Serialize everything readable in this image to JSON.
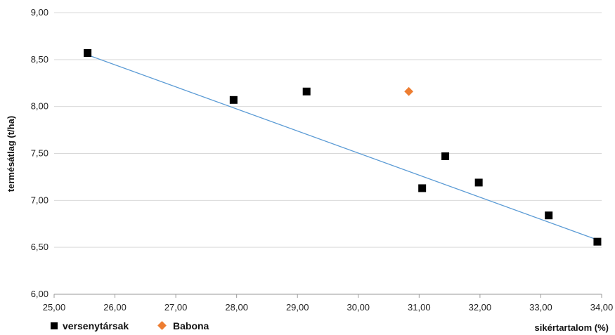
{
  "chart_data": {
    "type": "scatter",
    "title": "",
    "xlabel": "sikértartalom (%)",
    "ylabel": "termésátlag (t/ha)",
    "xlim": [
      25,
      34
    ],
    "ylim": [
      6,
      9
    ],
    "x_ticks": [
      "25,00",
      "26,00",
      "27,00",
      "28,00",
      "29,00",
      "30,00",
      "31,00",
      "32,00",
      "33,00",
      "34,00"
    ],
    "y_ticks": [
      "6,00",
      "6,50",
      "7,00",
      "7,50",
      "8,00",
      "8,50",
      "9,00"
    ],
    "grid": "horizontal",
    "legend_position": "bottom-left",
    "series": [
      {
        "name": "versenytársak",
        "marker": "square",
        "color": "#000000",
        "points": [
          {
            "x": 25.55,
            "y": 8.57
          },
          {
            "x": 27.95,
            "y": 8.07
          },
          {
            "x": 29.15,
            "y": 8.16
          },
          {
            "x": 31.05,
            "y": 7.13
          },
          {
            "x": 31.43,
            "y": 7.47
          },
          {
            "x": 31.98,
            "y": 7.19
          },
          {
            "x": 33.13,
            "y": 6.84
          },
          {
            "x": 33.93,
            "y": 6.56
          }
        ]
      },
      {
        "name": "Babona",
        "marker": "diamond",
        "color": "#ED7D31",
        "points": [
          {
            "x": 30.83,
            "y": 8.16
          }
        ]
      }
    ],
    "trendline": {
      "series": "versenytársak",
      "color": "#5B9BD5",
      "from": {
        "x": 25.55,
        "y": 8.55
      },
      "to": {
        "x": 33.93,
        "y": 6.58
      }
    }
  }
}
